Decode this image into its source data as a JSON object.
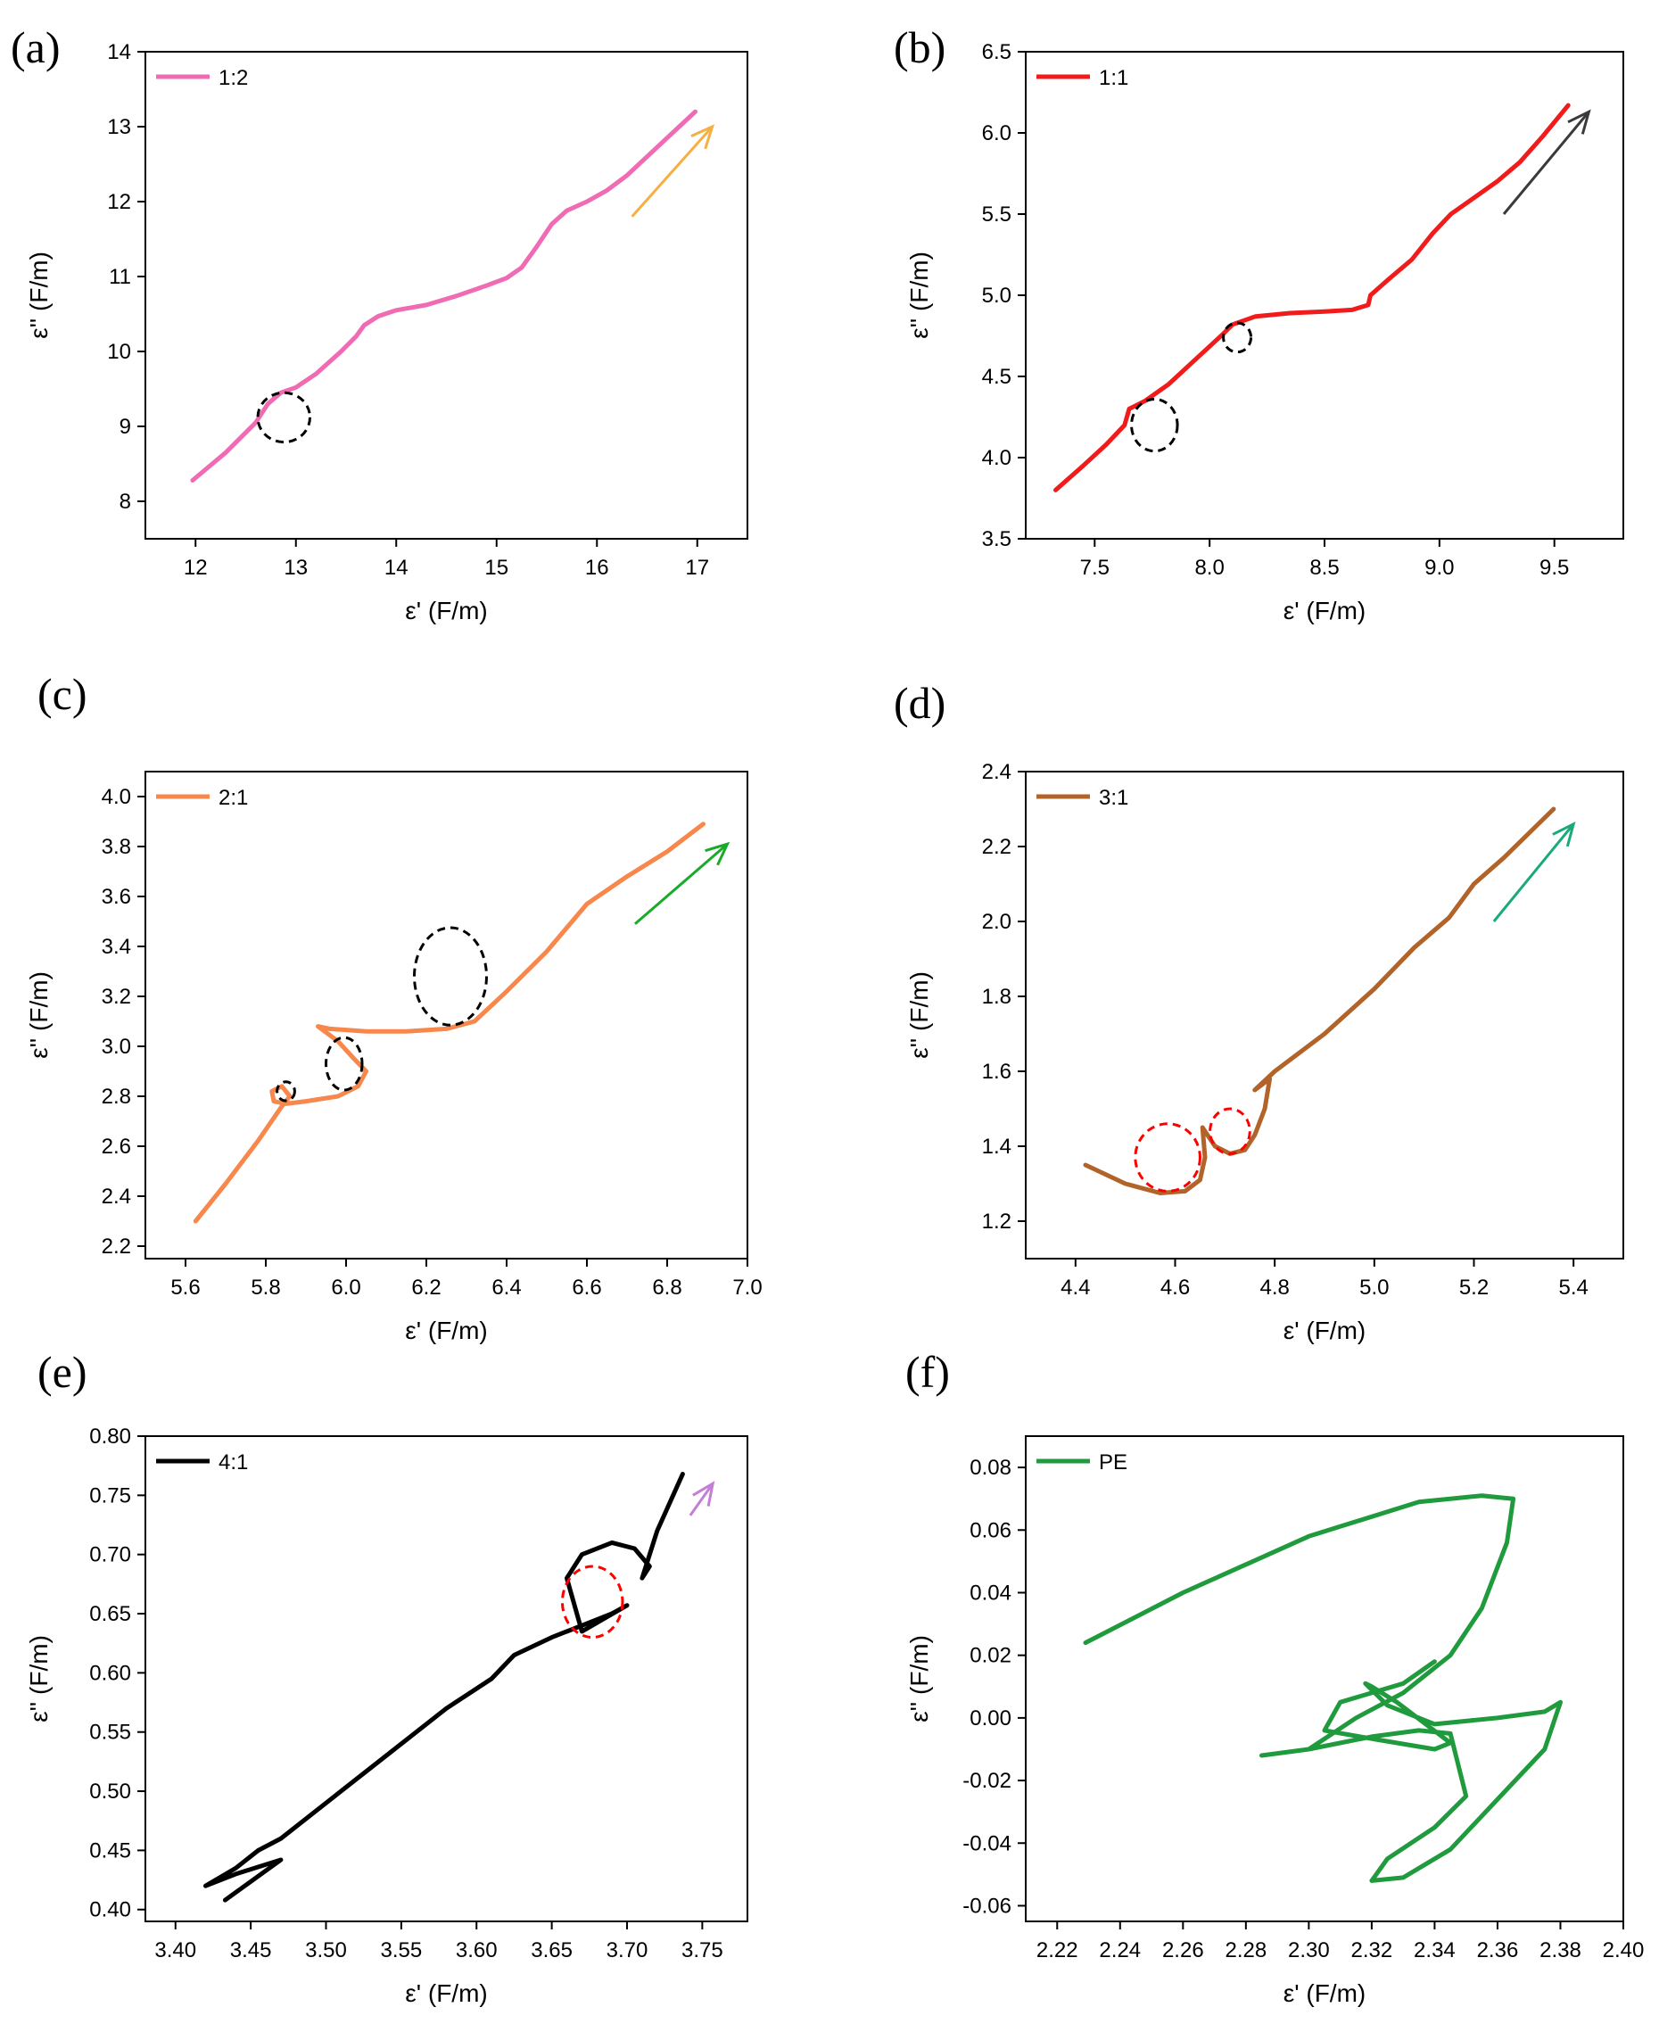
{
  "chart_data": [
    {
      "type": "line",
      "panel_label": "(a)",
      "legend": "1:2",
      "color": "#ef6bb3",
      "xlabel": "ε' (F/m)",
      "ylabel": "ε'' (F/m)",
      "xlim": [
        11.5,
        17.5
      ],
      "ylim": [
        7.5,
        14
      ],
      "xticks": [
        12,
        13,
        14,
        15,
        16,
        17
      ],
      "xtick_labels": [
        "12",
        "13",
        "14",
        "15",
        "16",
        "17"
      ],
      "yticks": [
        8,
        9,
        10,
        11,
        12,
        13,
        14
      ],
      "ytick_labels": [
        "8",
        "9",
        "10",
        "11",
        "12",
        "13",
        "14"
      ],
      "x": [
        11.97,
        12.3,
        12.6,
        12.72,
        12.85,
        13.0,
        13.2,
        13.45,
        13.6,
        13.68,
        13.82,
        14.0,
        14.3,
        14.6,
        14.9,
        15.1,
        15.25,
        15.4,
        15.55,
        15.7,
        15.9,
        16.1,
        16.3,
        16.5,
        16.7,
        16.98
      ],
      "y": [
        8.28,
        8.65,
        9.05,
        9.3,
        9.45,
        9.52,
        9.7,
        10.0,
        10.2,
        10.35,
        10.47,
        10.55,
        10.62,
        10.74,
        10.88,
        10.98,
        11.12,
        11.4,
        11.7,
        11.88,
        12.0,
        12.15,
        12.35,
        12.6,
        12.85,
        13.2
      ],
      "circles": [
        {
          "x": 12.88,
          "y": 9.12,
          "rx": 0.26,
          "ry": 0.33,
          "color": "#000000"
        }
      ],
      "arrow": {
        "x1": 16.35,
        "y1": 11.8,
        "x2": 17.15,
        "y2": 13.0,
        "color": "#f5b041"
      }
    },
    {
      "type": "line",
      "panel_label": "(b)",
      "legend": "1:1",
      "color": "#f11b1b",
      "xlabel": "ε' (F/m)",
      "ylabel": "ε'' (F/m)",
      "xlim": [
        7.2,
        9.8
      ],
      "ylim": [
        3.5,
        6.5
      ],
      "xticks": [
        7.5,
        8.0,
        8.5,
        9.0,
        9.5
      ],
      "xtick_labels": [
        "7.5",
        "8.0",
        "8.5",
        "9.0",
        "9.5"
      ],
      "yticks": [
        3.5,
        4.0,
        4.5,
        5.0,
        5.5,
        6.0,
        6.5
      ],
      "ytick_labels": [
        "3.5",
        "4.0",
        "4.5",
        "5.0",
        "5.5",
        "6.0",
        "6.5"
      ],
      "x": [
        7.33,
        7.45,
        7.55,
        7.63,
        7.65,
        7.72,
        7.82,
        7.95,
        8.05,
        8.1,
        8.2,
        8.35,
        8.5,
        8.62,
        8.69,
        8.7,
        8.78,
        8.88,
        8.97,
        9.05,
        9.15,
        9.25,
        9.35,
        9.45,
        9.56
      ],
      "y": [
        3.8,
        3.95,
        4.08,
        4.2,
        4.3,
        4.35,
        4.45,
        4.62,
        4.75,
        4.82,
        4.87,
        4.89,
        4.9,
        4.91,
        4.94,
        5.0,
        5.1,
        5.22,
        5.38,
        5.5,
        5.6,
        5.7,
        5.82,
        5.98,
        6.17
      ],
      "circles": [
        {
          "x": 7.76,
          "y": 4.2,
          "rx": 0.1,
          "ry": 0.16,
          "color": "#000000"
        },
        {
          "x": 8.12,
          "y": 4.74,
          "rx": 0.06,
          "ry": 0.09,
          "color": "#000000"
        }
      ],
      "arrow": {
        "x1": 9.28,
        "y1": 5.5,
        "x2": 9.65,
        "y2": 6.13,
        "color": "#3a3a3a"
      }
    },
    {
      "type": "line",
      "panel_label": "(c)",
      "legend": "2:1",
      "color": "#f7874b",
      "xlabel": "ε' (F/m)",
      "ylabel": "ε'' (F/m)",
      "xlim": [
        5.5,
        7.0
      ],
      "ylim": [
        2.15,
        4.1
      ],
      "xticks": [
        5.6,
        5.8,
        6.0,
        6.2,
        6.4,
        6.6,
        6.8,
        7.0
      ],
      "xtick_labels": [
        "5.6",
        "5.8",
        "6.0",
        "6.2",
        "6.4",
        "6.6",
        "6.8",
        "7.0"
      ],
      "yticks": [
        2.2,
        2.4,
        2.6,
        2.8,
        3.0,
        3.2,
        3.4,
        3.6,
        3.8,
        4.0
      ],
      "ytick_labels": [
        "2.2",
        "2.4",
        "2.6",
        "2.8",
        "3.0",
        "3.2",
        "3.4",
        "3.6",
        "3.8",
        "4.0"
      ],
      "x": [
        5.625,
        5.7,
        5.78,
        5.84,
        5.86,
        5.84,
        5.815,
        5.82,
        5.85,
        5.9,
        5.98,
        6.03,
        6.05,
        6.02,
        5.98,
        5.93,
        5.96,
        6.05,
        6.15,
        6.25,
        6.32,
        6.4,
        6.5,
        6.6,
        6.7,
        6.8,
        6.89
      ],
      "y": [
        2.3,
        2.45,
        2.62,
        2.76,
        2.8,
        2.84,
        2.82,
        2.78,
        2.77,
        2.78,
        2.8,
        2.84,
        2.9,
        2.95,
        3.02,
        3.08,
        3.07,
        3.06,
        3.06,
        3.07,
        3.1,
        3.22,
        3.38,
        3.57,
        3.68,
        3.78,
        3.89
      ],
      "circles": [
        {
          "x": 5.85,
          "y": 2.82,
          "rx": 0.022,
          "ry": 0.038,
          "color": "#000000"
        },
        {
          "x": 5.995,
          "y": 2.93,
          "rx": 0.045,
          "ry": 0.105,
          "color": "#000000"
        },
        {
          "x": 6.26,
          "y": 3.28,
          "rx": 0.09,
          "ry": 0.195,
          "color": "#000000"
        }
      ],
      "arrow": {
        "x1": 6.72,
        "y1": 3.49,
        "x2": 6.95,
        "y2": 3.81,
        "color": "#1aaa2a"
      }
    },
    {
      "type": "line",
      "panel_label": "(d)",
      "legend": "3:1",
      "color": "#b1632a",
      "xlabel": "ε' (F/m)",
      "ylabel": "ε'' (F/m)",
      "xlim": [
        4.3,
        5.5
      ],
      "ylim": [
        1.1,
        2.4
      ],
      "xticks": [
        4.4,
        4.6,
        4.8,
        5.0,
        5.2,
        5.4
      ],
      "xtick_labels": [
        "4.4",
        "4.6",
        "4.8",
        "5.0",
        "5.2",
        "5.4"
      ],
      "yticks": [
        1.2,
        1.4,
        1.6,
        1.8,
        2.0,
        2.2,
        2.4
      ],
      "ytick_labels": [
        "1.2",
        "1.4",
        "1.6",
        "1.8",
        "2.0",
        "2.2",
        "2.4"
      ],
      "x": [
        4.42,
        4.5,
        4.57,
        4.62,
        4.65,
        4.66,
        4.655,
        4.68,
        4.71,
        4.74,
        4.76,
        4.78,
        4.79,
        4.76,
        4.8,
        4.9,
        5.0,
        5.08,
        5.15,
        5.2,
        5.26,
        5.36
      ],
      "y": [
        1.35,
        1.3,
        1.275,
        1.28,
        1.31,
        1.37,
        1.45,
        1.4,
        1.38,
        1.39,
        1.43,
        1.5,
        1.58,
        1.55,
        1.6,
        1.7,
        1.82,
        1.93,
        2.01,
        2.1,
        2.17,
        2.3
      ],
      "circles": [
        {
          "x": 4.585,
          "y": 1.37,
          "rx": 0.065,
          "ry": 0.09,
          "color": "#ff0000"
        },
        {
          "x": 4.71,
          "y": 1.44,
          "rx": 0.04,
          "ry": 0.06,
          "color": "#ff0000"
        }
      ],
      "arrow": {
        "x1": 5.24,
        "y1": 2.0,
        "x2": 5.4,
        "y2": 2.26,
        "color": "#1aa97a"
      }
    },
    {
      "type": "line",
      "panel_label": "(e)",
      "legend": "4:1",
      "color": "#000000",
      "xlabel": "ε' (F/m)",
      "ylabel": "ε'' (F/m)",
      "xlim": [
        3.38,
        3.78
      ],
      "ylim": [
        0.39,
        0.8
      ],
      "xticks": [
        3.4,
        3.45,
        3.5,
        3.55,
        3.6,
        3.65,
        3.7,
        3.75
      ],
      "xtick_labels": [
        "3.40",
        "3.45",
        "3.50",
        "3.55",
        "3.60",
        "3.65",
        "3.70",
        "3.75"
      ],
      "yticks": [
        0.4,
        0.45,
        0.5,
        0.55,
        0.6,
        0.65,
        0.7,
        0.75,
        0.8
      ],
      "ytick_labels": [
        "0.40",
        "0.45",
        "0.50",
        "0.55",
        "0.60",
        "0.65",
        "0.70",
        "0.75",
        "0.80"
      ],
      "x": [
        3.433,
        3.47,
        3.44,
        3.42,
        3.44,
        3.455,
        3.47,
        3.5,
        3.53,
        3.58,
        3.61,
        3.625,
        3.65,
        3.69,
        3.7,
        3.67,
        3.66,
        3.67,
        3.69,
        3.705,
        3.715,
        3.71,
        3.72,
        3.737
      ],
      "y": [
        0.408,
        0.442,
        0.43,
        0.42,
        0.435,
        0.45,
        0.46,
        0.49,
        0.52,
        0.57,
        0.595,
        0.615,
        0.63,
        0.65,
        0.657,
        0.635,
        0.68,
        0.7,
        0.71,
        0.705,
        0.69,
        0.68,
        0.72,
        0.768
      ],
      "circles": [
        {
          "x": 3.677,
          "y": 0.66,
          "rx": 0.02,
          "ry": 0.03,
          "color": "#ff0000"
        }
      ],
      "arrow": {
        "x1": 3.742,
        "y1": 0.733,
        "x2": 3.757,
        "y2": 0.76,
        "color": "#c47ed8"
      }
    },
    {
      "type": "line",
      "panel_label": "(f)",
      "legend": "PE",
      "color": "#1f9a3c",
      "xlabel": "ε' (F/m)",
      "ylabel": "ε'' (F/m)",
      "xlim": [
        2.21,
        2.4
      ],
      "ylim": [
        -0.065,
        0.09
      ],
      "xticks": [
        2.22,
        2.24,
        2.26,
        2.28,
        2.3,
        2.32,
        2.34,
        2.36,
        2.38,
        2.4
      ],
      "xtick_labels": [
        "2.22",
        "2.24",
        "2.26",
        "2.28",
        "2.30",
        "2.32",
        "2.34",
        "2.36",
        "2.38",
        "2.40"
      ],
      "yticks": [
        -0.06,
        -0.04,
        -0.02,
        0.0,
        0.02,
        0.04,
        0.06,
        0.08
      ],
      "ytick_labels": [
        "-0.06",
        "-0.04",
        "-0.02",
        "0.00",
        "0.02",
        "0.04",
        "0.06",
        "0.08"
      ],
      "x": [
        2.229,
        2.26,
        2.3,
        2.335,
        2.355,
        2.365,
        2.363,
        2.355,
        2.345,
        2.33,
        2.315,
        2.3,
        2.285,
        2.3,
        2.32,
        2.335,
        2.345,
        2.35,
        2.34,
        2.325,
        2.32,
        2.33,
        2.345,
        2.375,
        2.38,
        2.375,
        2.36,
        2.34,
        2.325,
        2.318,
        2.32,
        2.328,
        2.345,
        2.34,
        2.322,
        2.305,
        2.31,
        2.33,
        2.34
      ],
      "y": [
        0.024,
        0.04,
        0.058,
        0.069,
        0.071,
        0.07,
        0.056,
        0.035,
        0.02,
        0.008,
        0.0,
        -0.01,
        -0.012,
        -0.01,
        -0.006,
        -0.004,
        -0.005,
        -0.025,
        -0.035,
        -0.045,
        -0.052,
        -0.051,
        -0.042,
        -0.01,
        0.005,
        0.002,
        0.0,
        -0.002,
        0.004,
        0.011,
        0.01,
        0.005,
        -0.008,
        -0.01,
        -0.007,
        -0.004,
        0.005,
        0.011,
        0.018
      ]
    }
  ]
}
